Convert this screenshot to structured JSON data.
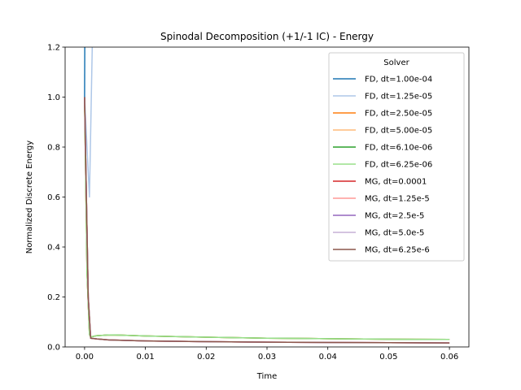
{
  "chart_data": {
    "type": "line",
    "title": "Spinodal Decomposition (+1/-1 IC) - Energy",
    "xlabel": "Time",
    "ylabel": "Normalized Discrete Energy",
    "xlim": [
      -0.0032,
      0.0632
    ],
    "ylim": [
      0,
      1.2
    ],
    "xticks": [
      0.0,
      0.01,
      0.02,
      0.03,
      0.04,
      0.05,
      0.06
    ],
    "xtick_labels": [
      "0.00",
      "0.01",
      "0.02",
      "0.03",
      "0.04",
      "0.05",
      "0.06"
    ],
    "yticks": [
      0.0,
      0.2,
      0.4,
      0.6,
      0.8,
      1.0,
      1.2
    ],
    "ytick_labels": [
      "0.0",
      "0.2",
      "0.4",
      "0.6",
      "0.8",
      "1.0",
      "1.2"
    ],
    "grid": false,
    "legend": {
      "title": "Solver",
      "placement": "top-right"
    },
    "series": [
      {
        "name": "FD, dt=1.00e-04",
        "color": "#1f77b4",
        "x": [
          0.0,
          0.0001
        ],
        "y": [
          1.0,
          1.6
        ]
      },
      {
        "name": "FD, dt=1.25e-05",
        "color": "#aec7e8",
        "x": [
          0.0,
          0.0008,
          0.0013
        ],
        "y": [
          1.0,
          0.6,
          1.25
        ]
      },
      {
        "name": "FD, dt=2.50e-05",
        "color": "#ff7f0e",
        "x": [
          0.0,
          0.0004,
          0.0008,
          0.001,
          0.002,
          0.004,
          0.006,
          0.01,
          0.02,
          0.03,
          0.04,
          0.05,
          0.06
        ],
        "y": [
          1.0,
          0.3,
          0.05,
          0.04,
          0.045,
          0.048,
          0.047,
          0.044,
          0.039,
          0.035,
          0.033,
          0.031,
          0.03
        ]
      },
      {
        "name": "FD, dt=5.00e-05",
        "color": "#ffbb78",
        "x": [
          0.0,
          0.0004,
          0.0008,
          0.001,
          0.002,
          0.004,
          0.006,
          0.01,
          0.02,
          0.03,
          0.04,
          0.05,
          0.06
        ],
        "y": [
          1.0,
          0.3,
          0.05,
          0.04,
          0.045,
          0.048,
          0.047,
          0.044,
          0.039,
          0.035,
          0.033,
          0.031,
          0.03
        ]
      },
      {
        "name": "FD, dt=6.10e-06",
        "color": "#2ca02c",
        "x": [
          0.0,
          0.0004,
          0.0008,
          0.001,
          0.002,
          0.004,
          0.006,
          0.01,
          0.02,
          0.03,
          0.04,
          0.05,
          0.06
        ],
        "y": [
          1.0,
          0.3,
          0.05,
          0.04,
          0.045,
          0.048,
          0.047,
          0.044,
          0.039,
          0.035,
          0.033,
          0.031,
          0.03
        ]
      },
      {
        "name": "FD, dt=6.25e-06",
        "color": "#98df8a",
        "x": [
          0.0,
          0.0004,
          0.0008,
          0.001,
          0.002,
          0.004,
          0.006,
          0.01,
          0.02,
          0.03,
          0.04,
          0.05,
          0.06
        ],
        "y": [
          1.0,
          0.3,
          0.05,
          0.04,
          0.045,
          0.048,
          0.047,
          0.044,
          0.039,
          0.035,
          0.033,
          0.031,
          0.03
        ]
      },
      {
        "name": "MG, dt=0.0001",
        "color": "#d62728",
        "x": [
          0.0,
          0.0003,
          0.0006,
          0.001,
          0.002,
          0.004,
          0.01,
          0.02,
          0.03,
          0.04,
          0.05,
          0.06
        ],
        "y": [
          1.0,
          0.6,
          0.2,
          0.035,
          0.032,
          0.028,
          0.024,
          0.021,
          0.019,
          0.018,
          0.017,
          0.016
        ]
      },
      {
        "name": "MG, dt=1.25e-5",
        "color": "#ff9896",
        "x": [
          0.0,
          0.0003,
          0.0006,
          0.001,
          0.002,
          0.004,
          0.01,
          0.02,
          0.03,
          0.04,
          0.05,
          0.06
        ],
        "y": [
          1.0,
          0.6,
          0.2,
          0.035,
          0.032,
          0.028,
          0.024,
          0.021,
          0.019,
          0.018,
          0.017,
          0.016
        ]
      },
      {
        "name": "MG, dt=2.5e-5",
        "color": "#9467bd",
        "x": [
          0.0,
          0.0003,
          0.0006,
          0.001,
          0.002,
          0.004,
          0.01,
          0.02,
          0.03,
          0.04,
          0.05,
          0.06
        ],
        "y": [
          1.0,
          0.6,
          0.2,
          0.035,
          0.032,
          0.028,
          0.024,
          0.021,
          0.019,
          0.018,
          0.017,
          0.016
        ]
      },
      {
        "name": "MG, dt=5.0e-5",
        "color": "#c5b0d5",
        "x": [
          0.0,
          0.0003,
          0.0006,
          0.001,
          0.002,
          0.004,
          0.01,
          0.02,
          0.03,
          0.04,
          0.05,
          0.06
        ],
        "y": [
          1.0,
          0.6,
          0.2,
          0.035,
          0.032,
          0.028,
          0.024,
          0.021,
          0.019,
          0.018,
          0.017,
          0.016
        ]
      },
      {
        "name": "MG, dt=6.25e-6",
        "color": "#8c564b",
        "x": [
          0.0,
          0.0003,
          0.0006,
          0.001,
          0.002,
          0.004,
          0.01,
          0.02,
          0.03,
          0.04,
          0.05,
          0.06
        ],
        "y": [
          1.0,
          0.6,
          0.2,
          0.035,
          0.032,
          0.028,
          0.024,
          0.021,
          0.019,
          0.018,
          0.017,
          0.016
        ]
      }
    ]
  }
}
